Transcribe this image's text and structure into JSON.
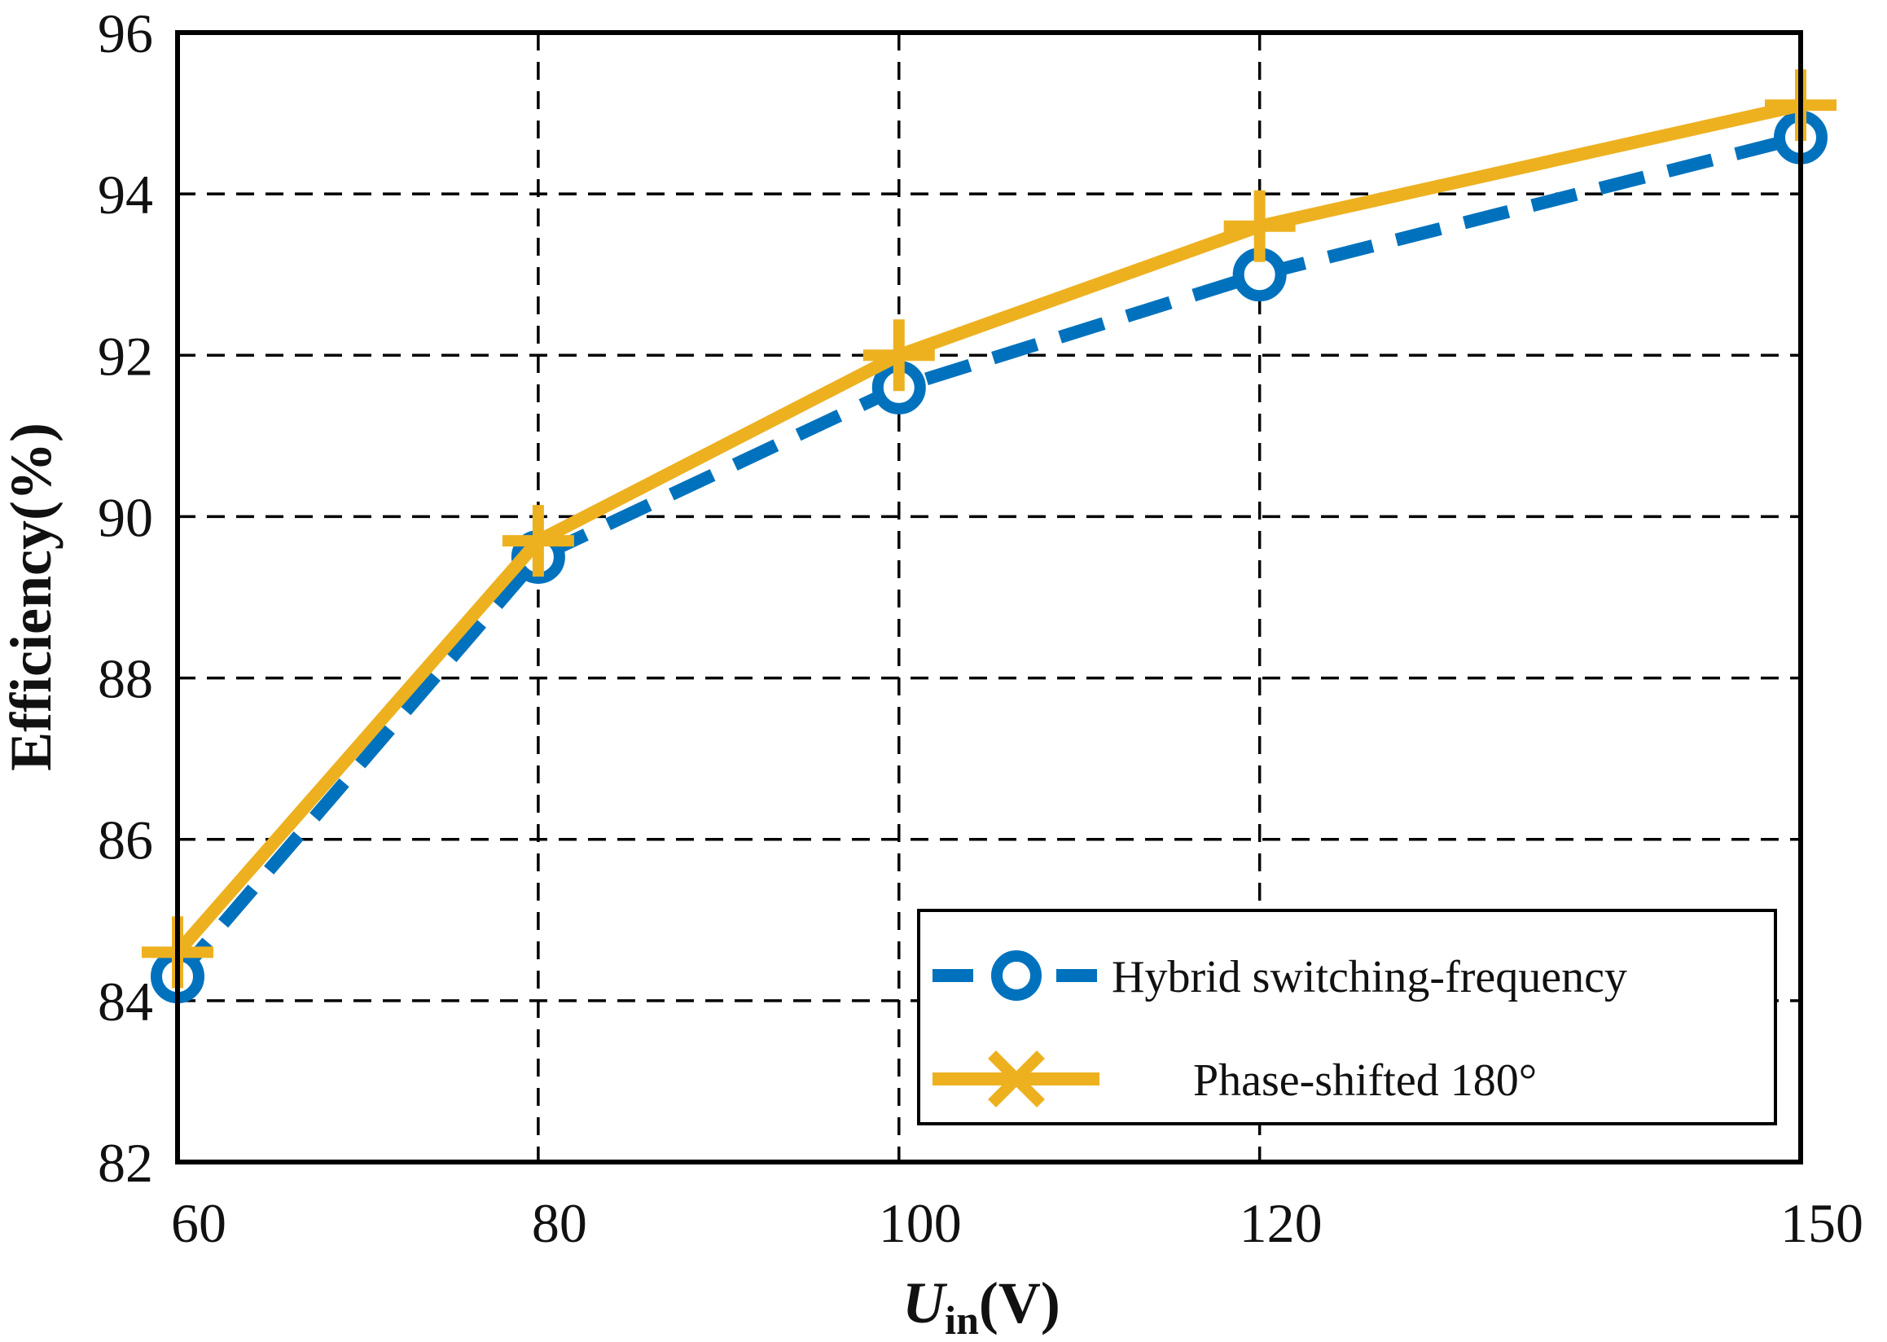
{
  "chart_data": {
    "type": "line",
    "title": "",
    "xlabel_main": "U",
    "xlabel_sub": "in",
    "xlabel_unit": "(V)",
    "ylabel": "Efficiency(%)",
    "categories": [
      "60",
      "80",
      "100",
      "120",
      "150"
    ],
    "x": [
      60,
      80,
      100,
      120,
      150
    ],
    "xlim": [
      60,
      150
    ],
    "ylim": [
      82,
      96
    ],
    "yticks": [
      82,
      84,
      86,
      88,
      90,
      92,
      94,
      96
    ],
    "grid": true,
    "legend_position": "bottom-right",
    "series": [
      {
        "name": "Hybrid switching-frequency",
        "values": [
          84.3,
          89.5,
          91.6,
          93.0,
          94.7
        ],
        "color": "#0072BD",
        "line_style": "dashed",
        "marker": "circle"
      },
      {
        "name": "Phase-shifted 180°",
        "values": [
          84.6,
          89.7,
          92.0,
          93.6,
          95.1
        ],
        "color": "#EDB120",
        "line_style": "solid",
        "marker": "plus"
      }
    ]
  }
}
